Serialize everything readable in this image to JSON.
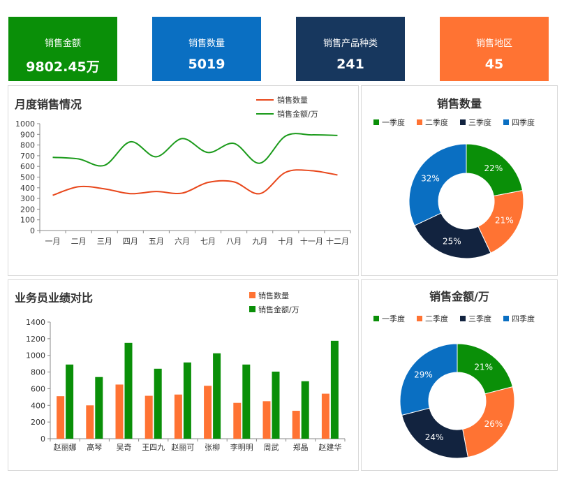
{
  "kpis": [
    {
      "label": "销售金额",
      "value": "9802.45万",
      "color": "#0a8f08"
    },
    {
      "label": "销售数量",
      "value": "5019",
      "color": "#0a6fc2"
    },
    {
      "label": "销售产品种类",
      "value": "241",
      "color": "#17375e"
    },
    {
      "label": "销售地区",
      "value": "45",
      "color": "#ff7333"
    }
  ],
  "chart_data": [
    {
      "type": "line",
      "title": "月度销售情况",
      "categories": [
        "一月",
        "二月",
        "三月",
        "四月",
        "五月",
        "六月",
        "七月",
        "八月",
        "九月",
        "十月",
        "十一月",
        "十二月"
      ],
      "series": [
        {
          "name": "销售数量",
          "color": "#e8471b",
          "values": [
            330,
            410,
            390,
            345,
            365,
            350,
            450,
            455,
            345,
            545,
            560,
            520
          ]
        },
        {
          "name": "销售金额/万",
          "color": "#1a9a1a",
          "values": [
            685,
            670,
            610,
            830,
            690,
            860,
            730,
            815,
            630,
            885,
            895,
            890
          ]
        }
      ],
      "ylim": [
        0,
        1000
      ],
      "yticks": [
        0,
        100,
        200,
        300,
        400,
        500,
        600,
        700,
        800,
        900,
        1000
      ],
      "legend": "top-right"
    },
    {
      "type": "pie",
      "title": "销售数量",
      "labels": [
        "一季度",
        "二季度",
        "三季度",
        "四季度"
      ],
      "values": [
        22,
        21,
        25,
        32
      ],
      "value_labels": [
        "22%",
        "21%",
        "25%",
        "32%"
      ],
      "colors": [
        "#0a8f08",
        "#ff7333",
        "#12233f",
        "#0a6fc2"
      ],
      "legend": "top"
    },
    {
      "type": "bar",
      "title": "业务员业绩对比",
      "categories": [
        "赵丽娜",
        "高琴",
        "吴奇",
        "王四九",
        "赵丽可",
        "张柳",
        "李明明",
        "周武",
        "郑晶",
        "赵建华"
      ],
      "series": [
        {
          "name": "销售数量",
          "color": "#ff7333",
          "values": [
            510,
            400,
            650,
            515,
            530,
            635,
            430,
            450,
            335,
            540
          ]
        },
        {
          "name": "销售金额/万",
          "color": "#0a8f08",
          "values": [
            890,
            740,
            1150,
            840,
            915,
            1025,
            890,
            805,
            690,
            1175
          ]
        }
      ],
      "ylim": [
        0,
        1400
      ],
      "yticks": [
        0,
        200,
        400,
        600,
        800,
        1000,
        1200,
        1400
      ],
      "legend": "top-right"
    },
    {
      "type": "pie",
      "title": "销售金额/万",
      "labels": [
        "一季度",
        "二季度",
        "三季度",
        "四季度"
      ],
      "values": [
        21,
        26,
        24,
        29
      ],
      "value_labels": [
        "21%",
        "26%",
        "24%",
        "29%"
      ],
      "colors": [
        "#0a8f08",
        "#ff7333",
        "#12233f",
        "#0a6fc2"
      ],
      "legend": "top"
    }
  ]
}
